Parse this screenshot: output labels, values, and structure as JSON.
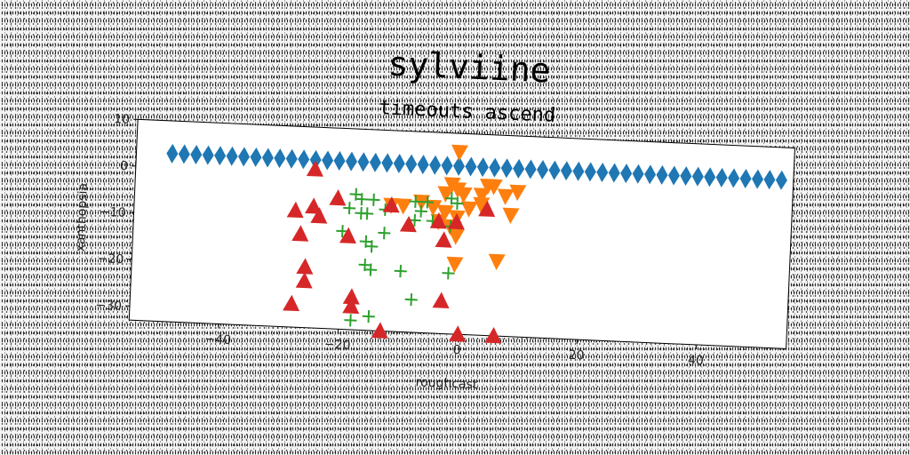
{
  "chart_data": {
    "type": "scatter",
    "title": "sylviine",
    "subtitle": "timeouts ascend",
    "xlabel": "roughcast",
    "ylabel": "xanthopsia",
    "xlim": [
      -55,
      55
    ],
    "ylim": [
      -33,
      10
    ],
    "xticks": [
      -40,
      -20,
      0,
      20,
      40
    ],
    "yticks": [
      10,
      0,
      -10,
      -20,
      -30
    ],
    "grid": false,
    "colors": {
      "blue": "#1f77b4",
      "orange": "#ff7f0e",
      "green": "#2ca02c",
      "red": "#d62728"
    },
    "series": [
      {
        "marker": "diamond",
        "color": "#1f77b4",
        "points": [
          [
            -49,
            3
          ],
          [
            -47,
            3
          ],
          [
            -45,
            3
          ],
          [
            -43,
            3
          ],
          [
            -41,
            3
          ],
          [
            -39,
            3
          ],
          [
            -37,
            3
          ],
          [
            -35,
            3
          ],
          [
            -33,
            3
          ],
          [
            -31,
            3
          ],
          [
            -29,
            3
          ],
          [
            -27,
            3
          ],
          [
            -25,
            3
          ],
          [
            -23,
            3
          ],
          [
            -21,
            3
          ],
          [
            -19,
            3
          ],
          [
            -17,
            3
          ],
          [
            -15,
            3
          ],
          [
            -13,
            3
          ],
          [
            -11,
            3
          ],
          [
            -9,
            3
          ],
          [
            -7,
            3
          ],
          [
            -5,
            3
          ],
          [
            -3,
            3
          ],
          [
            -1,
            3
          ],
          [
            1,
            3
          ],
          [
            3,
            3
          ],
          [
            5,
            3
          ],
          [
            7,
            3
          ],
          [
            9,
            3
          ],
          [
            11,
            3
          ],
          [
            13,
            3
          ],
          [
            15,
            3
          ],
          [
            17,
            3
          ],
          [
            19,
            3
          ],
          [
            21,
            3
          ],
          [
            23,
            3
          ],
          [
            25,
            3
          ],
          [
            27,
            3
          ],
          [
            29,
            3
          ],
          [
            31,
            3
          ],
          [
            33,
            3
          ],
          [
            35,
            3
          ],
          [
            37,
            3
          ],
          [
            39,
            3
          ],
          [
            41,
            3
          ],
          [
            43,
            3
          ],
          [
            45,
            3
          ],
          [
            47,
            3
          ],
          [
            49,
            3
          ],
          [
            51,
            3
          ],
          [
            53,
            3
          ]
        ]
      },
      {
        "marker": "triangle-down",
        "color": "#ff7f0e",
        "points": [
          [
            -1,
            6
          ],
          [
            -2,
            -1
          ],
          [
            -1,
            -2
          ],
          [
            -3,
            -3
          ],
          [
            0,
            -3
          ],
          [
            3,
            -3
          ],
          [
            4,
            -1
          ],
          [
            5,
            -1
          ],
          [
            7,
            -3
          ],
          [
            9,
            -2
          ],
          [
            -12,
            -6
          ],
          [
            -10,
            -6
          ],
          [
            -7,
            -5
          ],
          [
            -5,
            -6
          ],
          [
            -3,
            -7
          ],
          [
            -1,
            -8
          ],
          [
            1,
            -6
          ],
          [
            3,
            -5
          ],
          [
            8,
            -7
          ],
          [
            -2,
            -10
          ],
          [
            -1,
            -12
          ],
          [
            -1,
            -18
          ],
          [
            6,
            -17
          ],
          [
            -4,
            -9
          ]
        ]
      },
      {
        "marker": "plus",
        "color": "#2ca02c",
        "points": [
          [
            -18,
            -4
          ],
          [
            -17,
            -5
          ],
          [
            -15,
            -5
          ],
          [
            -19,
            -7
          ],
          [
            -17,
            -8
          ],
          [
            -16,
            -8
          ],
          [
            -13,
            -7
          ],
          [
            -8,
            -5
          ],
          [
            -6,
            -5
          ],
          [
            -2,
            -4
          ],
          [
            -1,
            -5
          ],
          [
            -7,
            -7
          ],
          [
            -8,
            -9
          ],
          [
            -5,
            -9
          ],
          [
            -2,
            -10
          ],
          [
            -20,
            -12
          ],
          [
            -16,
            -14
          ],
          [
            -15,
            -15
          ],
          [
            -13,
            -12
          ],
          [
            -16,
            -19
          ],
          [
            -15,
            -20
          ],
          [
            -10,
            -20
          ],
          [
            -2,
            -20
          ],
          [
            -8,
            -26
          ],
          [
            -18,
            -31
          ],
          [
            -15,
            -30
          ]
        ]
      },
      {
        "marker": "triangle-up",
        "color": "#d62728",
        "points": [
          [
            -25,
            1
          ],
          [
            -28,
            -8
          ],
          [
            -25,
            -7
          ],
          [
            -24,
            -9
          ],
          [
            -21,
            -5
          ],
          [
            -27,
            -13
          ],
          [
            -19,
            -13
          ],
          [
            -12,
            -6
          ],
          [
            -9,
            -10
          ],
          [
            -4,
            -9
          ],
          [
            -3,
            -13
          ],
          [
            -1,
            -9
          ],
          [
            4,
            -6
          ],
          [
            -26,
            -20
          ],
          [
            -26,
            -23
          ],
          [
            -28,
            -28
          ],
          [
            -18,
            -26
          ],
          [
            -18,
            -28
          ],
          [
            -3,
            -26
          ],
          [
            -13,
            -33
          ],
          [
            0,
            -33
          ],
          [
            6,
            -33
          ]
        ]
      }
    ]
  }
}
